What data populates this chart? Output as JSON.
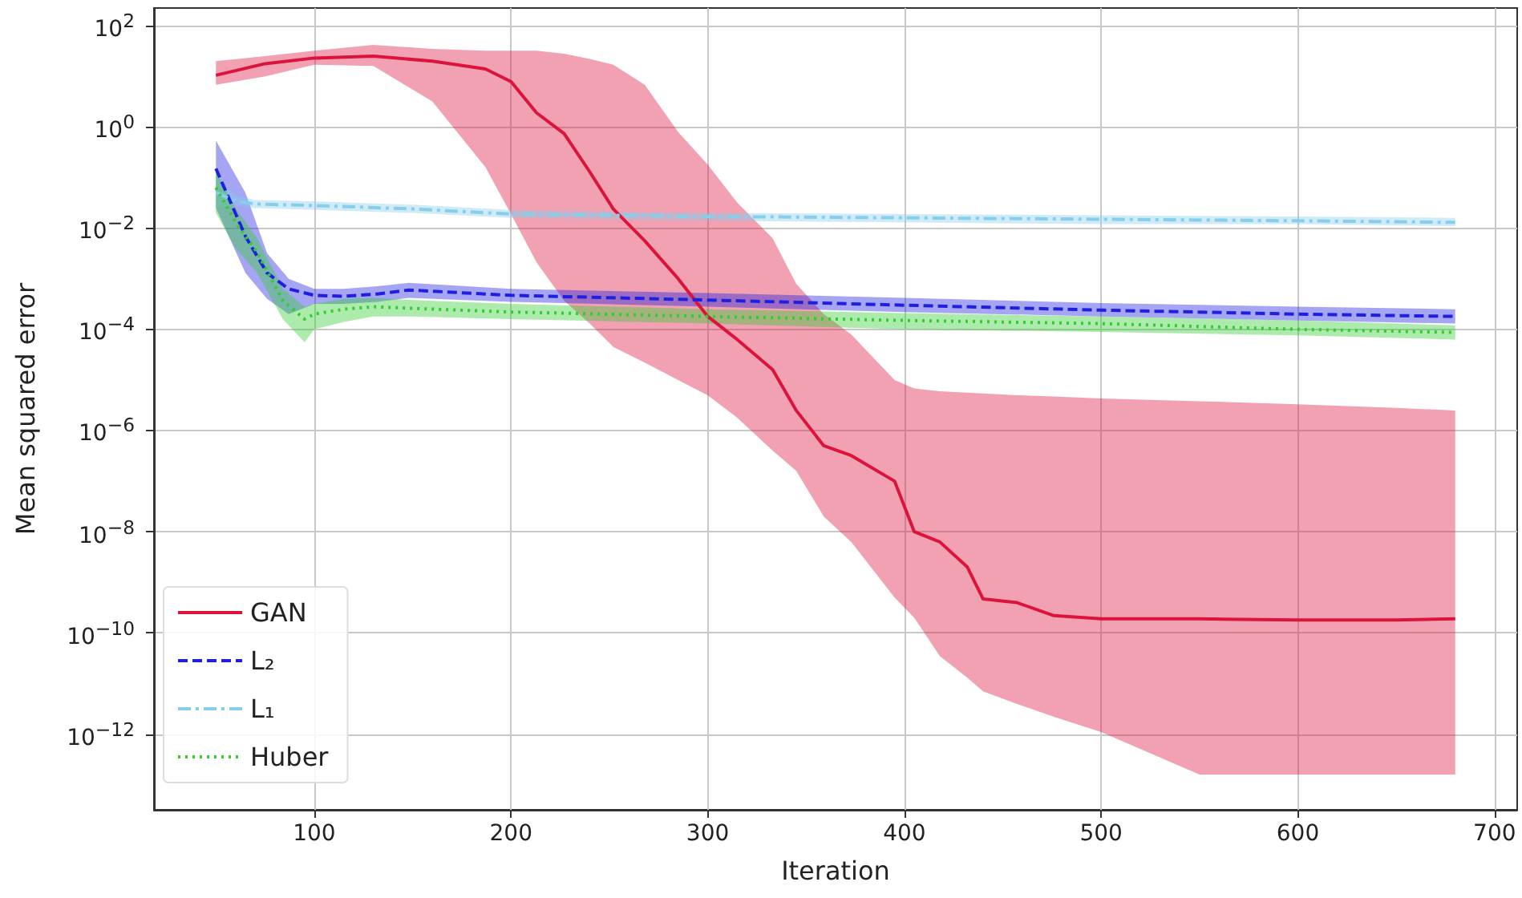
{
  "chart_data": {
    "type": "line",
    "xlabel": "Iteration",
    "ylabel": "Mean squared error",
    "xlim": [
      18.5,
      711.5
    ],
    "xticks": [
      100,
      200,
      300,
      400,
      500,
      600,
      700
    ],
    "ylim": [
      3.2e-14,
      224
    ],
    "log": "y",
    "yticks": [
      {
        "value": 1e-12,
        "label": "10$^{−12}$"
      },
      {
        "value": 1e-10,
        "label": "10$^{−10}$"
      },
      {
        "value": 1e-08,
        "label": "10$^{−8}$"
      },
      {
        "value": 1e-06,
        "label": "10$^{−6}$"
      },
      {
        "value": 0.0001,
        "label": "10$^{−4}$"
      },
      {
        "value": 0.01,
        "label": "10$^{−2}$"
      },
      {
        "value": 1,
        "label": "10$^{0}$"
      },
      {
        "value": 100,
        "label": "10$^{2}$"
      }
    ],
    "grid": true,
    "legend": "bottom left",
    "marker": "none",
    "series": [
      {
        "name": "GAN",
        "color": "#dc143c",
        "line_style": "solid",
        "x": [
          50,
          75,
          100,
          130,
          160,
          187,
          200,
          213,
          227,
          240,
          252,
          268,
          285,
          300,
          315,
          333,
          345,
          359,
          373,
          395,
          405,
          418,
          432,
          440,
          457,
          476,
          500,
          550,
          600,
          650,
          680
        ],
        "values": [
          10.5,
          17.8,
          23,
          25,
          20,
          14,
          7.9,
          1.9,
          0.74,
          0.13,
          0.024,
          0.0056,
          0.001,
          0.00018,
          6.3e-05,
          1.6e-05,
          2.5e-06,
          5e-07,
          3.2e-07,
          1e-07,
          1e-08,
          6.3e-09,
          2e-09,
          4.7e-10,
          4e-10,
          2.2e-10,
          1.9e-10,
          1.9e-10,
          1.8e-10,
          1.8e-10,
          1.9e-10
        ],
        "upper": [
          20,
          25,
          32,
          42,
          35,
          32,
          32,
          32,
          28,
          22,
          17,
          6.8,
          0.79,
          0.18,
          0.032,
          0.0063,
          0.00079,
          0.0002,
          7.9e-05,
          1e-05,
          6.8e-06,
          6e-06,
          5.6e-06,
          5.4e-06,
          5e-06,
          4.7e-06,
          4.3e-06,
          3.8e-06,
          3.3e-06,
          2.8e-06,
          2.5e-06
        ],
        "lower": [
          6.8,
          10,
          17,
          16,
          3.2,
          0.16,
          0.019,
          0.0021,
          0.00037,
          0.00013,
          4.5e-05,
          2.2e-05,
          1e-05,
          5e-06,
          1.8e-06,
          4e-07,
          1.6e-07,
          2e-08,
          6.3e-09,
          5e-10,
          2e-10,
          3.5e-11,
          1.3e-11,
          7e-12,
          4e-12,
          2.2e-12,
          1.1e-12,
          1.6e-13,
          1.6e-13,
          1.6e-13,
          1.6e-13
        ]
      },
      {
        "name": "L₂",
        "color": "#1f1fe0",
        "line_style": "dashed",
        "x": [
          50,
          65,
          76,
          87,
          100,
          115,
          132,
          148,
          200,
          300,
          400,
          500,
          600,
          680
        ],
        "values": [
          0.15,
          0.0069,
          0.0013,
          0.00063,
          0.00047,
          0.00045,
          0.0005,
          0.0006,
          0.00047,
          0.00038,
          0.0003,
          0.00024,
          0.0002,
          0.00018
        ],
        "upper": [
          0.54,
          0.05,
          0.0032,
          0.001,
          0.00063,
          0.00063,
          0.00071,
          0.00083,
          0.00063,
          0.00052,
          0.00042,
          0.00033,
          0.00028,
          0.00025
        ],
        "lower": [
          0.025,
          0.0013,
          0.0004,
          0.0002,
          0.00032,
          0.00032,
          0.00035,
          0.00042,
          0.00035,
          0.00028,
          0.00022,
          0.00018,
          0.00015,
          0.00013
        ]
      },
      {
        "name": "L₁",
        "color": "#87ceeb",
        "line_style": "dashdot",
        "x": [
          50,
          60,
          70,
          100,
          150,
          200,
          300,
          400,
          500,
          600,
          680
        ],
        "values": [
          0.05,
          0.035,
          0.03,
          0.028,
          0.024,
          0.019,
          0.017,
          0.016,
          0.015,
          0.014,
          0.013
        ],
        "upper": [
          0.1,
          0.045,
          0.036,
          0.034,
          0.029,
          0.023,
          0.02,
          0.019,
          0.018,
          0.017,
          0.016
        ],
        "lower": [
          0.025,
          0.028,
          0.025,
          0.023,
          0.02,
          0.016,
          0.014,
          0.013,
          0.012,
          0.012,
          0.011
        ]
      },
      {
        "name": "Huber",
        "color": "#32cd32",
        "line_style": "dotted",
        "x": [
          50,
          60,
          71,
          84,
          95,
          100,
          115,
          130,
          150,
          200,
          300,
          400,
          500,
          600,
          680
        ],
        "values": [
          0.063,
          0.013,
          0.0033,
          0.00037,
          0.00016,
          0.0002,
          0.00025,
          0.00028,
          0.00026,
          0.00022,
          0.00018,
          0.00015,
          0.00013,
          0.0001,
          8.7e-05
        ],
        "upper": [
          0.13,
          0.025,
          0.0063,
          0.00063,
          0.00028,
          0.00032,
          0.0004,
          0.00042,
          0.00038,
          0.00032,
          0.00025,
          0.00021,
          0.00018,
          0.00015,
          0.00012
        ],
        "lower": [
          0.02,
          0.004,
          0.0013,
          0.00016,
          5.6e-05,
          0.0001,
          0.00014,
          0.00018,
          0.00018,
          0.00016,
          0.00013,
          0.0001,
          8.9e-05,
          7.6e-05,
          6.3e-05
        ]
      }
    ]
  }
}
